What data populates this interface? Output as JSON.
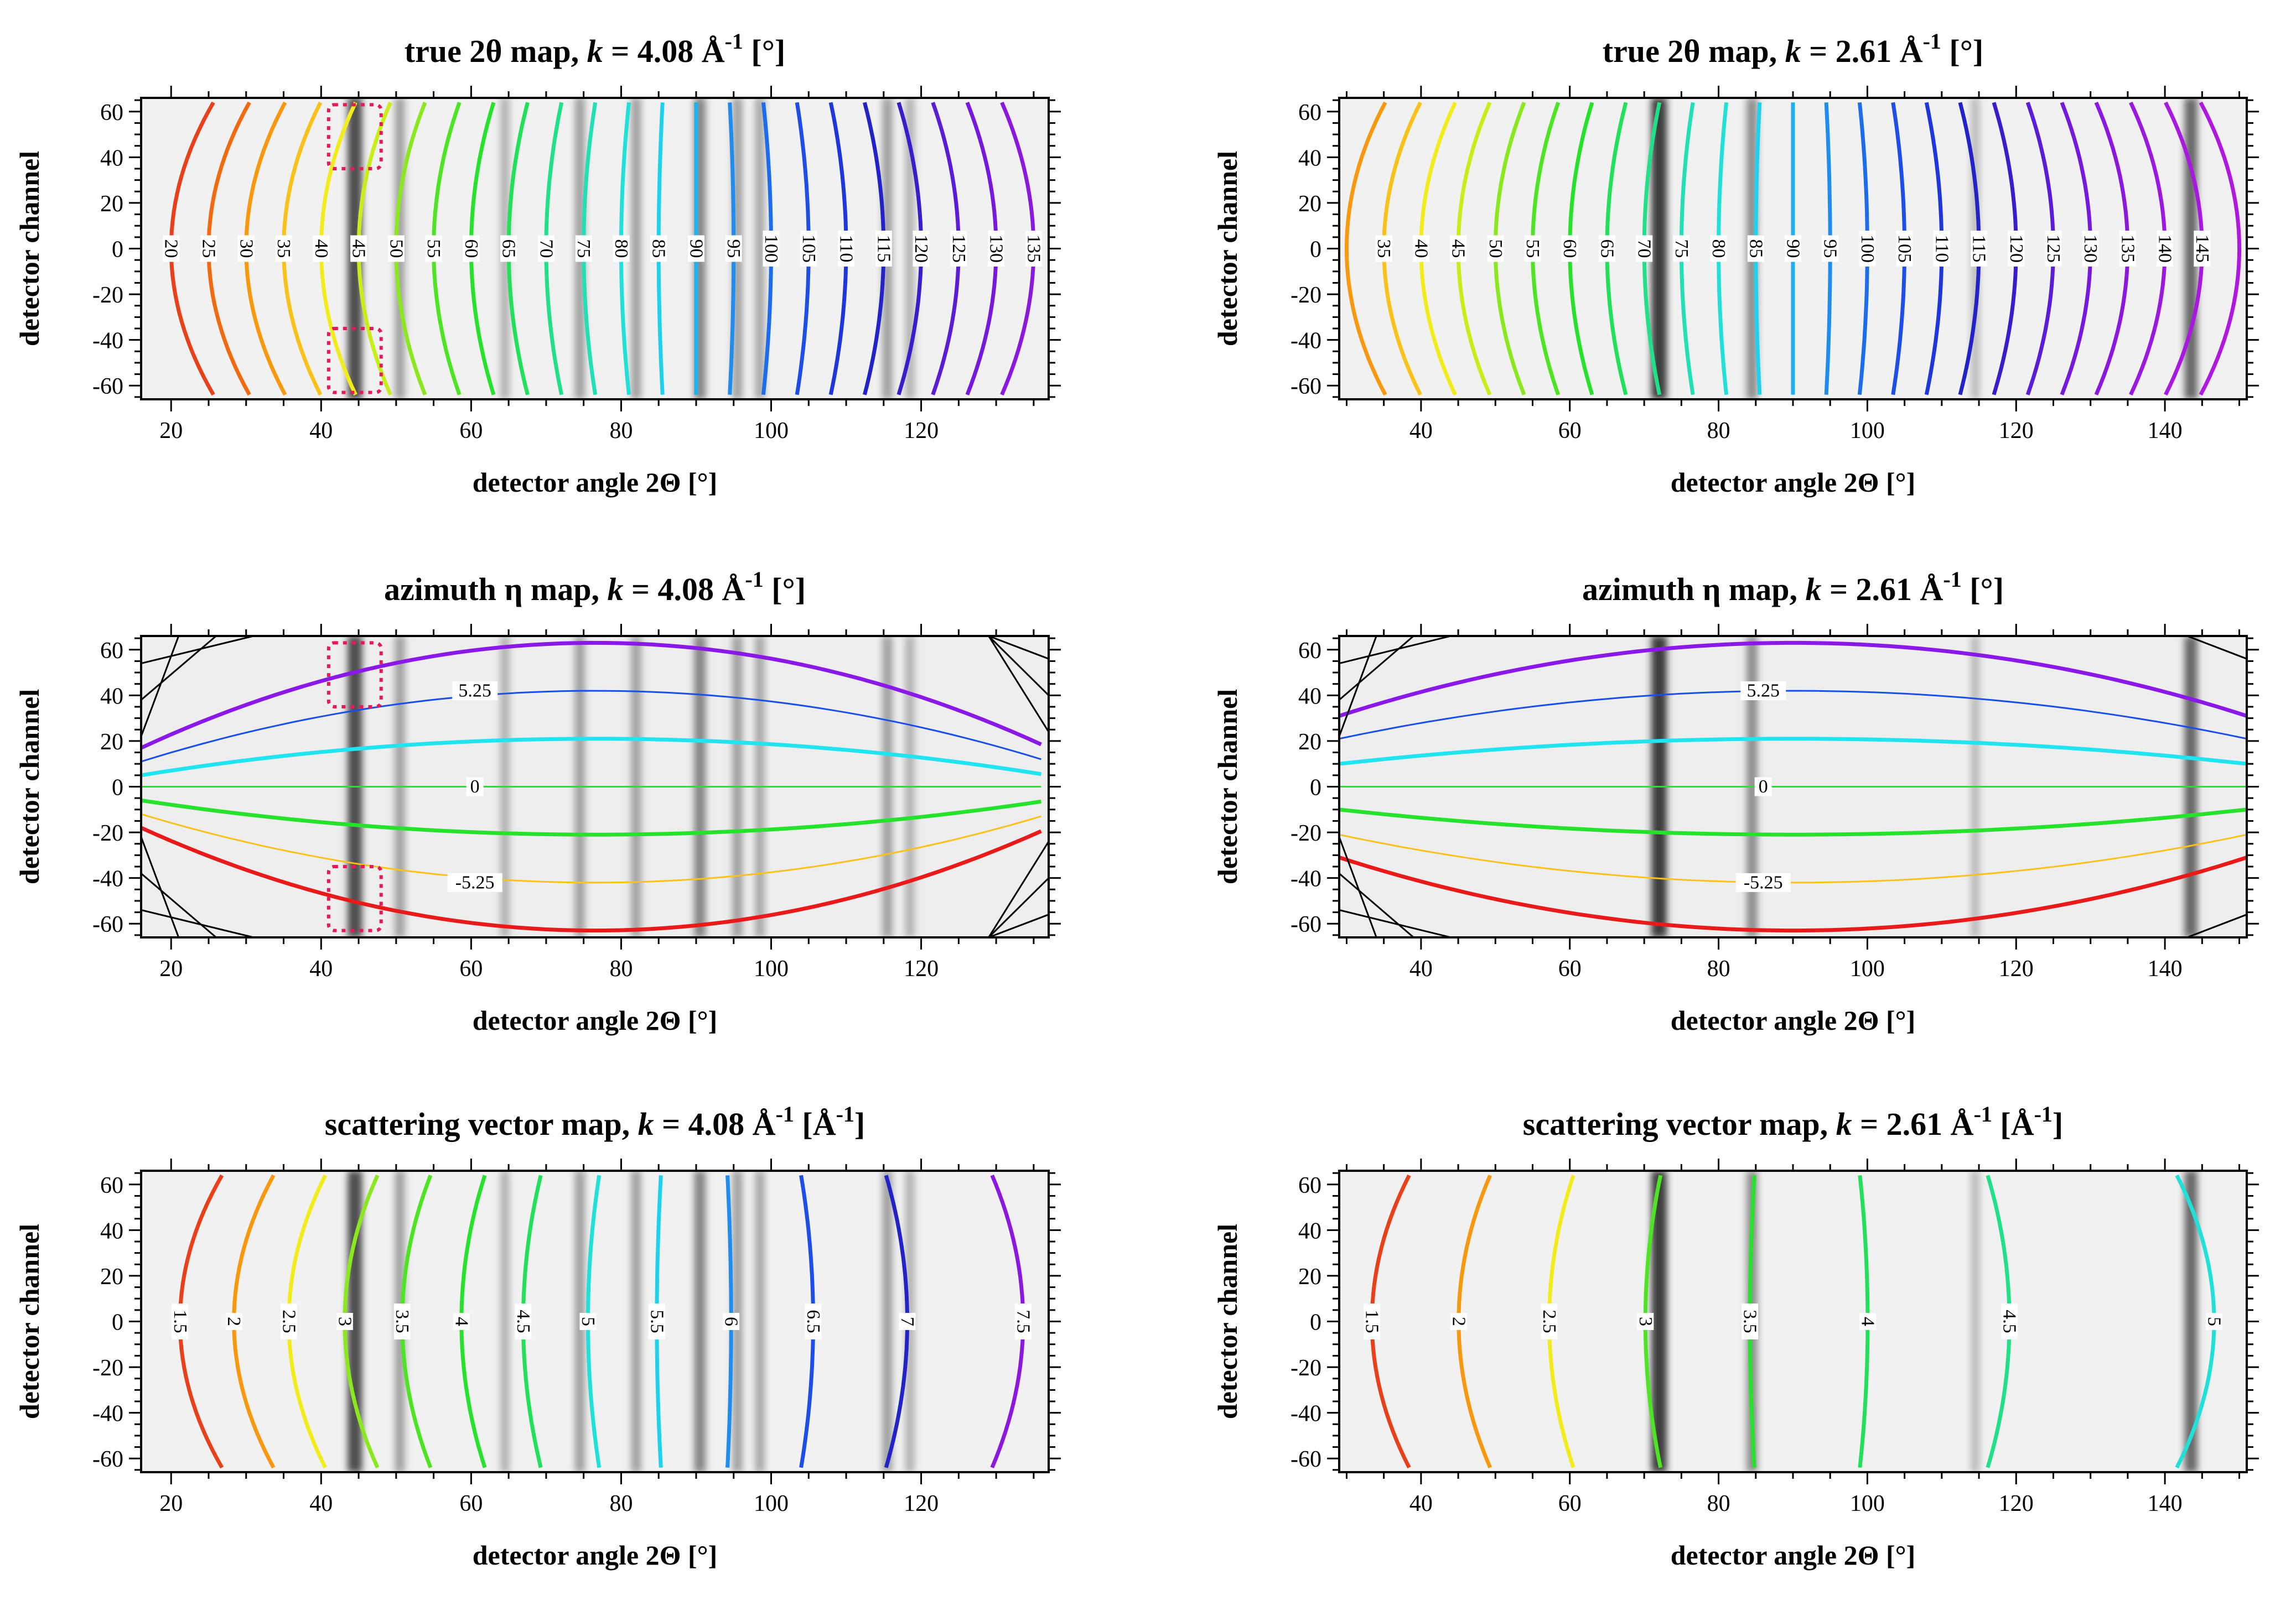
{
  "chart_data": [
    {
      "type": "contour",
      "kind": "two_theta",
      "title": {
        "prefix": "true 2θ map, ",
        "k": "k",
        "mid": " = 4.08 Å",
        "sup": "-1",
        "suffix": " [°]"
      },
      "xlabel": "detector angle 2Θ [°]",
      "ylabel": "detector channel",
      "xlim": [
        16,
        137
      ],
      "ylim": [
        -66,
        66
      ],
      "xticks": [
        20,
        40,
        60,
        80,
        100,
        120
      ],
      "yticks": [
        -60,
        -40,
        -20,
        0,
        20,
        40,
        60
      ],
      "contours": [
        {
          "label": "20",
          "value": 20,
          "color": "#e8401a"
        },
        {
          "label": "25",
          "value": 25,
          "color": "#f26a10"
        },
        {
          "label": "30",
          "value": 30,
          "color": "#f7980f"
        },
        {
          "label": "35",
          "value": 35,
          "color": "#f9c21a"
        },
        {
          "label": "40",
          "value": 40,
          "color": "#f3ec1c"
        },
        {
          "label": "45",
          "value": 45,
          "color": "#c8ee1a"
        },
        {
          "label": "50",
          "value": 50,
          "color": "#8be81e"
        },
        {
          "label": "55",
          "value": 55,
          "color": "#4ee423"
        },
        {
          "label": "60",
          "value": 60,
          "color": "#26e22d"
        },
        {
          "label": "65",
          "value": 65,
          "color": "#22e05a"
        },
        {
          "label": "70",
          "value": 70,
          "color": "#22e08a"
        },
        {
          "label": "75",
          "value": 75,
          "color": "#22e0b4"
        },
        {
          "label": "80",
          "value": 80,
          "color": "#20e0d8"
        },
        {
          "label": "85",
          "value": 85,
          "color": "#1ed2ee"
        },
        {
          "label": "90",
          "value": 90,
          "color": "#1fb0f0"
        },
        {
          "label": "95",
          "value": 95,
          "color": "#1f8cf0"
        },
        {
          "label": "100",
          "value": 100,
          "color": "#1e6cee"
        },
        {
          "label": "105",
          "value": 105,
          "color": "#1e4ee8"
        },
        {
          "label": "110",
          "value": 110,
          "color": "#1e36dc"
        },
        {
          "label": "115",
          "value": 115,
          "color": "#2222c8"
        },
        {
          "label": "120",
          "value": 120,
          "color": "#3a1ccc"
        },
        {
          "label": "125",
          "value": 125,
          "color": "#5a1cd6"
        },
        {
          "label": "130",
          "value": 130,
          "color": "#7618de"
        },
        {
          "label": "135",
          "value": 135,
          "color": "#8c18e0"
        }
      ],
      "bands": [
        {
          "x": 44.5,
          "s": 0.9
        },
        {
          "x": 50.5,
          "s": 0.45
        },
        {
          "x": 64.5,
          "s": 0.35
        },
        {
          "x": 74.5,
          "s": 0.45
        },
        {
          "x": 82,
          "s": 0.45
        },
        {
          "x": 90.5,
          "s": 0.6
        },
        {
          "x": 95.5,
          "s": 0.45
        },
        {
          "x": 98.5,
          "s": 0.4
        },
        {
          "x": 115.5,
          "s": 0.45
        },
        {
          "x": 118.5,
          "s": 0.35
        }
      ],
      "background": "#f1f1f1",
      "highlight_boxes": [
        {
          "x": [
            41,
            48
          ],
          "y": [
            35,
            63
          ]
        },
        {
          "x": [
            41,
            48
          ],
          "y": [
            -63,
            -35
          ]
        }
      ]
    },
    {
      "type": "contour",
      "kind": "two_theta",
      "title": {
        "prefix": "true 2θ map, ",
        "k": "k",
        "mid": " = 2.61 Å",
        "sup": "-1",
        "suffix": " [°]"
      },
      "xlabel": "detector angle 2Θ [°]",
      "ylabel": "detector channel",
      "xlim": [
        29,
        151
      ],
      "ylim": [
        -66,
        66
      ],
      "xticks": [
        40,
        60,
        80,
        100,
        120,
        140
      ],
      "yticks": [
        -60,
        -40,
        -20,
        0,
        20,
        40,
        60
      ],
      "contours": [
        {
          "label": "",
          "value": 30,
          "color": "#f7980f"
        },
        {
          "label": "35",
          "value": 35,
          "color": "#f9c21a"
        },
        {
          "label": "40",
          "value": 40,
          "color": "#f3ec1c"
        },
        {
          "label": "45",
          "value": 45,
          "color": "#c8ee1a"
        },
        {
          "label": "50",
          "value": 50,
          "color": "#8be81e"
        },
        {
          "label": "55",
          "value": 55,
          "color": "#4ee423"
        },
        {
          "label": "60",
          "value": 60,
          "color": "#26e22d"
        },
        {
          "label": "65",
          "value": 65,
          "color": "#22e05a"
        },
        {
          "label": "70",
          "value": 70,
          "color": "#22e08a"
        },
        {
          "label": "75",
          "value": 75,
          "color": "#22e0b4"
        },
        {
          "label": "80",
          "value": 80,
          "color": "#20e0d8"
        },
        {
          "label": "85",
          "value": 85,
          "color": "#1ed2ee"
        },
        {
          "label": "90",
          "value": 90,
          "color": "#1fb0f0"
        },
        {
          "label": "95",
          "value": 95,
          "color": "#1f8cf0"
        },
        {
          "label": "100",
          "value": 100,
          "color": "#1e6cee"
        },
        {
          "label": "105",
          "value": 105,
          "color": "#1e4ee8"
        },
        {
          "label": "110",
          "value": 110,
          "color": "#1e36dc"
        },
        {
          "label": "115",
          "value": 115,
          "color": "#2222c8"
        },
        {
          "label": "120",
          "value": 120,
          "color": "#3a1ccc"
        },
        {
          "label": "125",
          "value": 125,
          "color": "#5a1cd6"
        },
        {
          "label": "130",
          "value": 130,
          "color": "#7618de"
        },
        {
          "label": "135",
          "value": 135,
          "color": "#8c18e0"
        },
        {
          "label": "140",
          "value": 140,
          "color": "#9a18e0"
        },
        {
          "label": "145",
          "value": 145,
          "color": "#a818e0"
        },
        {
          "label": "",
          "value": 150,
          "color": "#b018e0"
        }
      ],
      "bands": [
        {
          "x": 72,
          "s": 1.0
        },
        {
          "x": 84.5,
          "s": 0.55
        },
        {
          "x": 114.5,
          "s": 0.3
        },
        {
          "x": 143.5,
          "s": 0.75
        }
      ],
      "background": "#f1f1f1",
      "highlight_boxes": []
    },
    {
      "type": "contour",
      "kind": "eta",
      "title": {
        "prefix": "azimuth η map, ",
        "k": "k",
        "mid": " = 4.08 Å",
        "sup": "-1",
        "suffix": " [°]"
      },
      "xlabel": "detector angle 2Θ [°]",
      "ylabel": "detector channel",
      "xlim": [
        16,
        137
      ],
      "ylim": [
        -66,
        66
      ],
      "xticks": [
        20,
        40,
        60,
        80,
        100,
        120
      ],
      "yticks": [
        -60,
        -40,
        -20,
        0,
        20,
        40,
        60
      ],
      "eta_curves": [
        {
          "label": "",
          "peak": 63,
          "end": 17,
          "color": "#8a18e6",
          "width": 7
        },
        {
          "label": "5.25",
          "peak": 42,
          "end": 11,
          "color": "#1a4ee8",
          "width": 3
        },
        {
          "label": "",
          "peak": 21,
          "end": 5,
          "color": "#22e4f0",
          "width": 7
        },
        {
          "label": "0",
          "peak": 0,
          "end": 0,
          "color": "#26e22d",
          "width": 3
        },
        {
          "label": "",
          "peak": -21,
          "end": -6,
          "color": "#26e22d",
          "width": 7
        },
        {
          "label": "-5.25",
          "peak": -42,
          "end": -12,
          "color": "#f9c21a",
          "width": 3
        },
        {
          "label": "",
          "peak": -63,
          "end": -18,
          "color": "#e81a1a",
          "width": 7
        }
      ],
      "black_lines": 10,
      "bands": [
        {
          "x": 44.5,
          "s": 0.9
        },
        {
          "x": 50.5,
          "s": 0.45
        },
        {
          "x": 64.5,
          "s": 0.35
        },
        {
          "x": 74.5,
          "s": 0.45
        },
        {
          "x": 82,
          "s": 0.45
        },
        {
          "x": 90.5,
          "s": 0.6
        },
        {
          "x": 95.5,
          "s": 0.45
        },
        {
          "x": 98.5,
          "s": 0.4
        },
        {
          "x": 115.5,
          "s": 0.45
        },
        {
          "x": 118.5,
          "s": 0.35
        }
      ],
      "background": "#eeeeee",
      "highlight_boxes": [
        {
          "x": [
            41,
            48
          ],
          "y": [
            35,
            63
          ]
        },
        {
          "x": [
            41,
            48
          ],
          "y": [
            -63,
            -35
          ]
        }
      ]
    },
    {
      "type": "contour",
      "kind": "eta",
      "title": {
        "prefix": "azimuth η map, ",
        "k": "k",
        "mid": " = 2.61 Å",
        "sup": "-1",
        "suffix": " [°]"
      },
      "xlabel": "detector angle 2Θ [°]",
      "ylabel": "detector channel",
      "xlim": [
        29,
        151
      ],
      "ylim": [
        -66,
        66
      ],
      "xticks": [
        40,
        60,
        80,
        100,
        120,
        140
      ],
      "yticks": [
        -60,
        -40,
        -20,
        0,
        20,
        40,
        60
      ],
      "eta_curves": [
        {
          "label": "",
          "peak": 63,
          "end": 31,
          "color": "#8a18e6",
          "width": 7
        },
        {
          "label": "5.25",
          "peak": 42,
          "end": 21,
          "color": "#1a4ee8",
          "width": 3
        },
        {
          "label": "",
          "peak": 21,
          "end": 10,
          "color": "#22e4f0",
          "width": 7
        },
        {
          "label": "0",
          "peak": 0,
          "end": 0,
          "color": "#26e22d",
          "width": 3
        },
        {
          "label": "",
          "peak": -21,
          "end": -10,
          "color": "#26e22d",
          "width": 7
        },
        {
          "label": "-5.25",
          "peak": -42,
          "end": -21,
          "color": "#f9c21a",
          "width": 3
        },
        {
          "label": "",
          "peak": -63,
          "end": -31,
          "color": "#e81a1a",
          "width": 7
        }
      ],
      "black_lines": 3,
      "bands": [
        {
          "x": 72,
          "s": 1.0
        },
        {
          "x": 84.5,
          "s": 0.55
        },
        {
          "x": 114.5,
          "s": 0.3
        },
        {
          "x": 143.5,
          "s": 0.75
        }
      ],
      "background": "#eeeeee",
      "highlight_boxes": []
    },
    {
      "type": "contour",
      "kind": "q",
      "title": {
        "prefix": "scattering vector map, ",
        "k": "k",
        "mid": " = 4.08 Å",
        "sup": "-1",
        "suffix": " [Å",
        "sup2": "-1",
        "suffix2": "]"
      },
      "xlabel": "detector angle 2Θ [°]",
      "ylabel": "detector channel",
      "xlim": [
        16,
        137
      ],
      "ylim": [
        -66,
        66
      ],
      "xticks": [
        20,
        40,
        60,
        80,
        100,
        120
      ],
      "yticks": [
        -60,
        -40,
        -20,
        0,
        20,
        40,
        60
      ],
      "k": 4.08,
      "contours": [
        {
          "label": "1.5",
          "value": 1.5,
          "color": "#e8401a"
        },
        {
          "label": "2",
          "value": 2,
          "color": "#f7980f"
        },
        {
          "label": "2.5",
          "value": 2.5,
          "color": "#f3ec1c"
        },
        {
          "label": "3",
          "value": 3,
          "color": "#8be81e"
        },
        {
          "label": "3.5",
          "value": 3.5,
          "color": "#4ee423"
        },
        {
          "label": "4",
          "value": 4,
          "color": "#26e22d"
        },
        {
          "label": "4.5",
          "value": 4.5,
          "color": "#22e05a"
        },
        {
          "label": "5",
          "value": 5,
          "color": "#20e0d8"
        },
        {
          "label": "5.5",
          "value": 5.5,
          "color": "#1ed2ee"
        },
        {
          "label": "6",
          "value": 6,
          "color": "#1f8cf0"
        },
        {
          "label": "6.5",
          "value": 6.5,
          "color": "#1e4ee8"
        },
        {
          "label": "7",
          "value": 7,
          "color": "#2222c8"
        },
        {
          "label": "7.5",
          "value": 7.5,
          "color": "#8c18e0"
        }
      ],
      "bands": [
        {
          "x": 44.5,
          "s": 0.9
        },
        {
          "x": 50.5,
          "s": 0.45
        },
        {
          "x": 64.5,
          "s": 0.35
        },
        {
          "x": 74.5,
          "s": 0.45
        },
        {
          "x": 82,
          "s": 0.45
        },
        {
          "x": 90.5,
          "s": 0.6
        },
        {
          "x": 95.5,
          "s": 0.45
        },
        {
          "x": 98.5,
          "s": 0.4
        },
        {
          "x": 115.5,
          "s": 0.45
        },
        {
          "x": 118.5,
          "s": 0.35
        }
      ],
      "background": "#f1f1f1",
      "highlight_boxes": []
    },
    {
      "type": "contour",
      "kind": "q",
      "title": {
        "prefix": "scattering vector map, ",
        "k": "k",
        "mid": " = 2.61 Å",
        "sup": "-1",
        "suffix": " [Å",
        "sup2": "-1",
        "suffix2": "]"
      },
      "xlabel": "detector angle 2Θ [°]",
      "ylabel": "detector channel",
      "xlim": [
        29,
        151
      ],
      "ylim": [
        -66,
        66
      ],
      "xticks": [
        40,
        60,
        80,
        100,
        120,
        140
      ],
      "yticks": [
        -60,
        -40,
        -20,
        0,
        20,
        40,
        60
      ],
      "k": 2.61,
      "contours": [
        {
          "label": "1.5",
          "value": 1.5,
          "color": "#e8401a"
        },
        {
          "label": "2",
          "value": 2,
          "color": "#f7980f"
        },
        {
          "label": "2.5",
          "value": 2.5,
          "color": "#f3ec1c"
        },
        {
          "label": "3",
          "value": 3,
          "color": "#4ee423"
        },
        {
          "label": "3.5",
          "value": 3.5,
          "color": "#26e22d"
        },
        {
          "label": "4",
          "value": 4,
          "color": "#22e05a"
        },
        {
          "label": "4.5",
          "value": 4.5,
          "color": "#22e08a"
        },
        {
          "label": "5",
          "value": 5,
          "color": "#20e0d8"
        }
      ],
      "bands": [
        {
          "x": 72,
          "s": 1.0
        },
        {
          "x": 84.5,
          "s": 0.55
        },
        {
          "x": 114.5,
          "s": 0.3
        },
        {
          "x": 143.5,
          "s": 0.75
        }
      ],
      "background": "#f1f1f1",
      "highlight_boxes": []
    }
  ]
}
